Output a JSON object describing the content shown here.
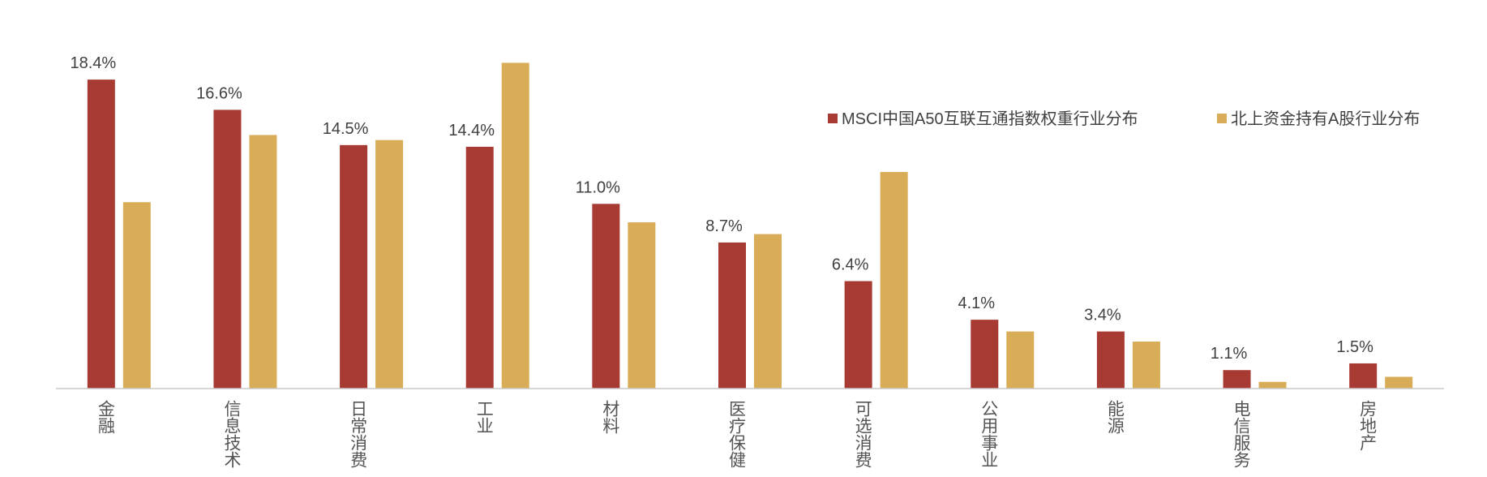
{
  "chart_data": {
    "type": "bar",
    "categories": [
      "金融",
      "信息技术",
      "日常消费",
      "工业",
      "材料",
      "医疗保健",
      "可选消费",
      "公用事业",
      "能源",
      "电信服务",
      "房地产"
    ],
    "series": [
      {
        "name": "MSCI中国A50互联互通指数权重行业分布",
        "color": "#a83a34",
        "values": [
          18.4,
          16.6,
          14.5,
          14.4,
          11.0,
          8.7,
          6.4,
          4.1,
          3.4,
          1.1,
          1.5
        ],
        "value_labels": [
          "18.4%",
          "16.6%",
          "14.5%",
          "14.4%",
          "11.0%",
          "8.7%",
          "6.4%",
          "4.1%",
          "3.4%",
          "1.1%",
          "1.5%"
        ]
      },
      {
        "name": "北上资金持有A股行业分布",
        "color": "#d9ad57",
        "values": [
          11.1,
          15.1,
          14.8,
          19.4,
          9.9,
          9.2,
          12.9,
          3.4,
          2.8,
          0.4,
          0.7
        ]
      }
    ],
    "ylim": [
      0,
      20
    ],
    "legend": "top-right"
  }
}
